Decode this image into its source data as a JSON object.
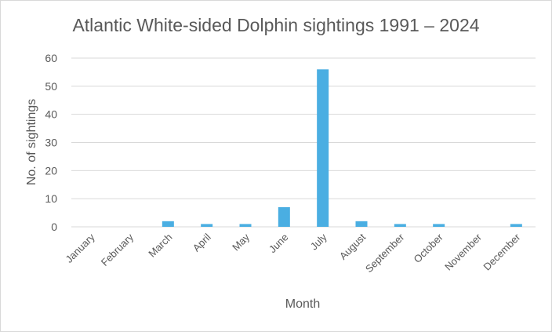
{
  "chart_data": {
    "type": "bar",
    "title": "Atlantic White-sided Dolphin sightings 1991 – 2024",
    "xlabel": "Month",
    "ylabel": "No. of sightings",
    "ylim": [
      0,
      60
    ],
    "yticks": [
      0,
      10,
      20,
      30,
      40,
      50,
      60
    ],
    "grid": true,
    "legend": "none",
    "bar_color": "#4aaee2",
    "categories": [
      "January",
      "February",
      "March",
      "April",
      "May",
      "June",
      "July",
      "August",
      "September",
      "October",
      "November",
      "December"
    ],
    "values": [
      0,
      0,
      2,
      1,
      1,
      7,
      56,
      2,
      1,
      1,
      0,
      1
    ]
  }
}
